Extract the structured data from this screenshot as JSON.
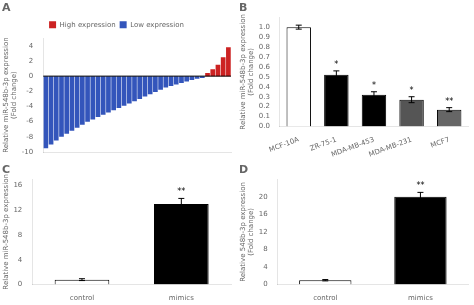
{
  "chart_data": [
    {
      "type": "bar",
      "title": "A",
      "categories": [
        null,
        null,
        null,
        null,
        null,
        null,
        null,
        null,
        null,
        null,
        null,
        null,
        null,
        null,
        null,
        null,
        null,
        null,
        null,
        null,
        null,
        null,
        null,
        null,
        null,
        null,
        null,
        null,
        null,
        null,
        null,
        null,
        null,
        null,
        null,
        null
      ],
      "series": [
        {
          "name": "High expression",
          "color": "#cc2222",
          "values": [
            null,
            null,
            null,
            null,
            null,
            null,
            null,
            null,
            null,
            null,
            null,
            null,
            null,
            null,
            null,
            null,
            null,
            null,
            null,
            null,
            null,
            null,
            null,
            null,
            null,
            null,
            null,
            null,
            null,
            null,
            null,
            0.4,
            0.9,
            1.5,
            2.5,
            3.8
          ]
        },
        {
          "name": "Low expression",
          "color": "#3355bb",
          "values": [
            -9.5,
            -9.0,
            -8.5,
            -8.0,
            -7.6,
            -7.2,
            -6.8,
            -6.4,
            -6.0,
            -5.7,
            -5.4,
            -5.1,
            -4.8,
            -4.5,
            -4.2,
            -3.9,
            -3.6,
            -3.3,
            -3.0,
            -2.7,
            -2.4,
            -2.1,
            -1.8,
            -1.5,
            -1.3,
            -1.1,
            -0.9,
            -0.7,
            -0.5,
            -0.35,
            -0.25,
            null,
            null,
            null,
            null,
            null
          ]
        }
      ],
      "ylabel": "Relative miR-548b-3p expression\n(Fold change)",
      "ylim": [
        -10,
        5
      ],
      "yticks": [
        -10,
        -8,
        -6,
        -4,
        -2,
        0,
        2,
        4
      ],
      "legend": "upper center",
      "tick_labels": "y",
      "grid": false
    },
    {
      "type": "bar",
      "title": "B",
      "categories": [
        "MCF-10A",
        "ZR-75-1",
        "MDA-MB-453",
        "MDA-MB-231",
        "MCF7"
      ],
      "values": [
        1.0,
        0.52,
        0.32,
        0.27,
        0.17
      ],
      "errors": [
        0.02,
        0.04,
        0.03,
        0.03,
        0.02
      ],
      "colors": [
        "white",
        "black",
        "black",
        "#555555",
        "#666666"
      ],
      "annotations": [
        null,
        "*",
        "*",
        "*",
        "**"
      ],
      "ylabel": "Relative miR-548b-3p expression\n(Fold change)",
      "ylim": [
        0,
        1.1
      ],
      "yticks": [
        {
          "value": 0.0,
          "label": "0.0"
        },
        0.1,
        0.2,
        0.3,
        0.4,
        0.5,
        0.6,
        0.7,
        0.8,
        0.9,
        {
          "value": 1.0,
          "label": "1.0"
        }
      ],
      "grid": false
    },
    {
      "type": "bar",
      "title": "C",
      "categories": [
        "control",
        "mimics"
      ],
      "values": [
        0.8,
        13.0
      ],
      "errors": [
        0.15,
        0.9
      ],
      "colors": [
        "white",
        "black"
      ],
      "annotations": [
        null,
        "**"
      ],
      "ylabel": "Relative miR-548b-3p expression",
      "ylim": [
        0,
        17
      ],
      "yticks": [
        0,
        4,
        8,
        12,
        16
      ],
      "grid": false
    },
    {
      "type": "bar",
      "title": "D",
      "categories": [
        "control",
        "mimics"
      ],
      "values": [
        1.0,
        20.0
      ],
      "errors": [
        0.15,
        1.0
      ],
      "colors": [
        "white",
        "black"
      ],
      "annotations": [
        null,
        "**"
      ],
      "ylabel": "Relative 548b-3p expression\n(Fold change)",
      "ylim": [
        0,
        24
      ],
      "yticks": [
        0,
        4,
        8,
        12,
        16,
        20
      ],
      "grid": false
    }
  ]
}
